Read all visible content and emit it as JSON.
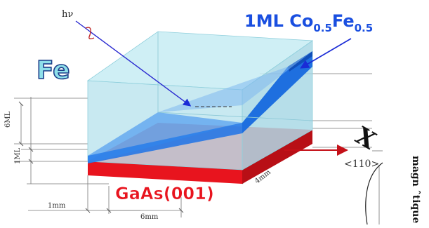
{
  "labels": {
    "photon": "hν",
    "fe": "Fe",
    "top_layer": {
      "base": "1ML Co",
      "sub1": "0.5",
      "mid": "Fe",
      "sub2": "0.5"
    },
    "substrate": "GaAs(001)",
    "axis_x": "X",
    "direction": "<110>",
    "side_text": "magn ˆtique",
    "dim_6ml": "6ML",
    "dim_1ml": "1ML",
    "dim_1mm": "1mm",
    "dim_6mm": "6mm",
    "dim_4mm": "4mm"
  },
  "colors": {
    "fe_block": "#bfe7f0",
    "wedge": "#1e73e6",
    "substrate": "#e8141e",
    "label_blue": "#1a4fe0",
    "label_red": "#e8141e",
    "arrow_blue": "#2233dd"
  }
}
